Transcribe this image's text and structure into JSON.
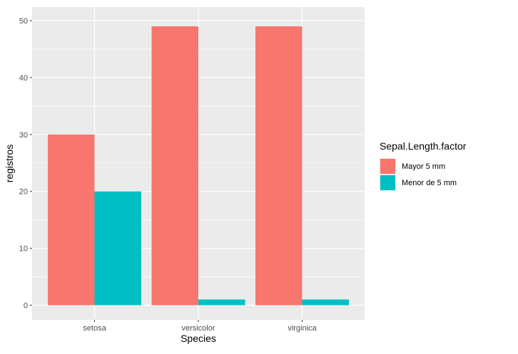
{
  "chart_data": {
    "type": "bar",
    "xlabel": "Species",
    "ylabel": "registros",
    "categories": [
      "setosa",
      "versicolor",
      "virginica"
    ],
    "series": [
      {
        "name": "Mayor 5 mm",
        "values": [
          30,
          49,
          49
        ],
        "color": "#F8766D"
      },
      {
        "name": "Menor de 5 mm",
        "values": [
          20,
          1,
          1
        ],
        "color": "#00BFC4"
      }
    ],
    "ylim": [
      0,
      51.5
    ],
    "yticks": [
      0,
      10,
      20,
      30,
      40,
      50
    ],
    "grid": true,
    "panel_background": "#EBEBEB",
    "legend": {
      "title": "Sepal.Length.factor",
      "position": "right"
    }
  }
}
